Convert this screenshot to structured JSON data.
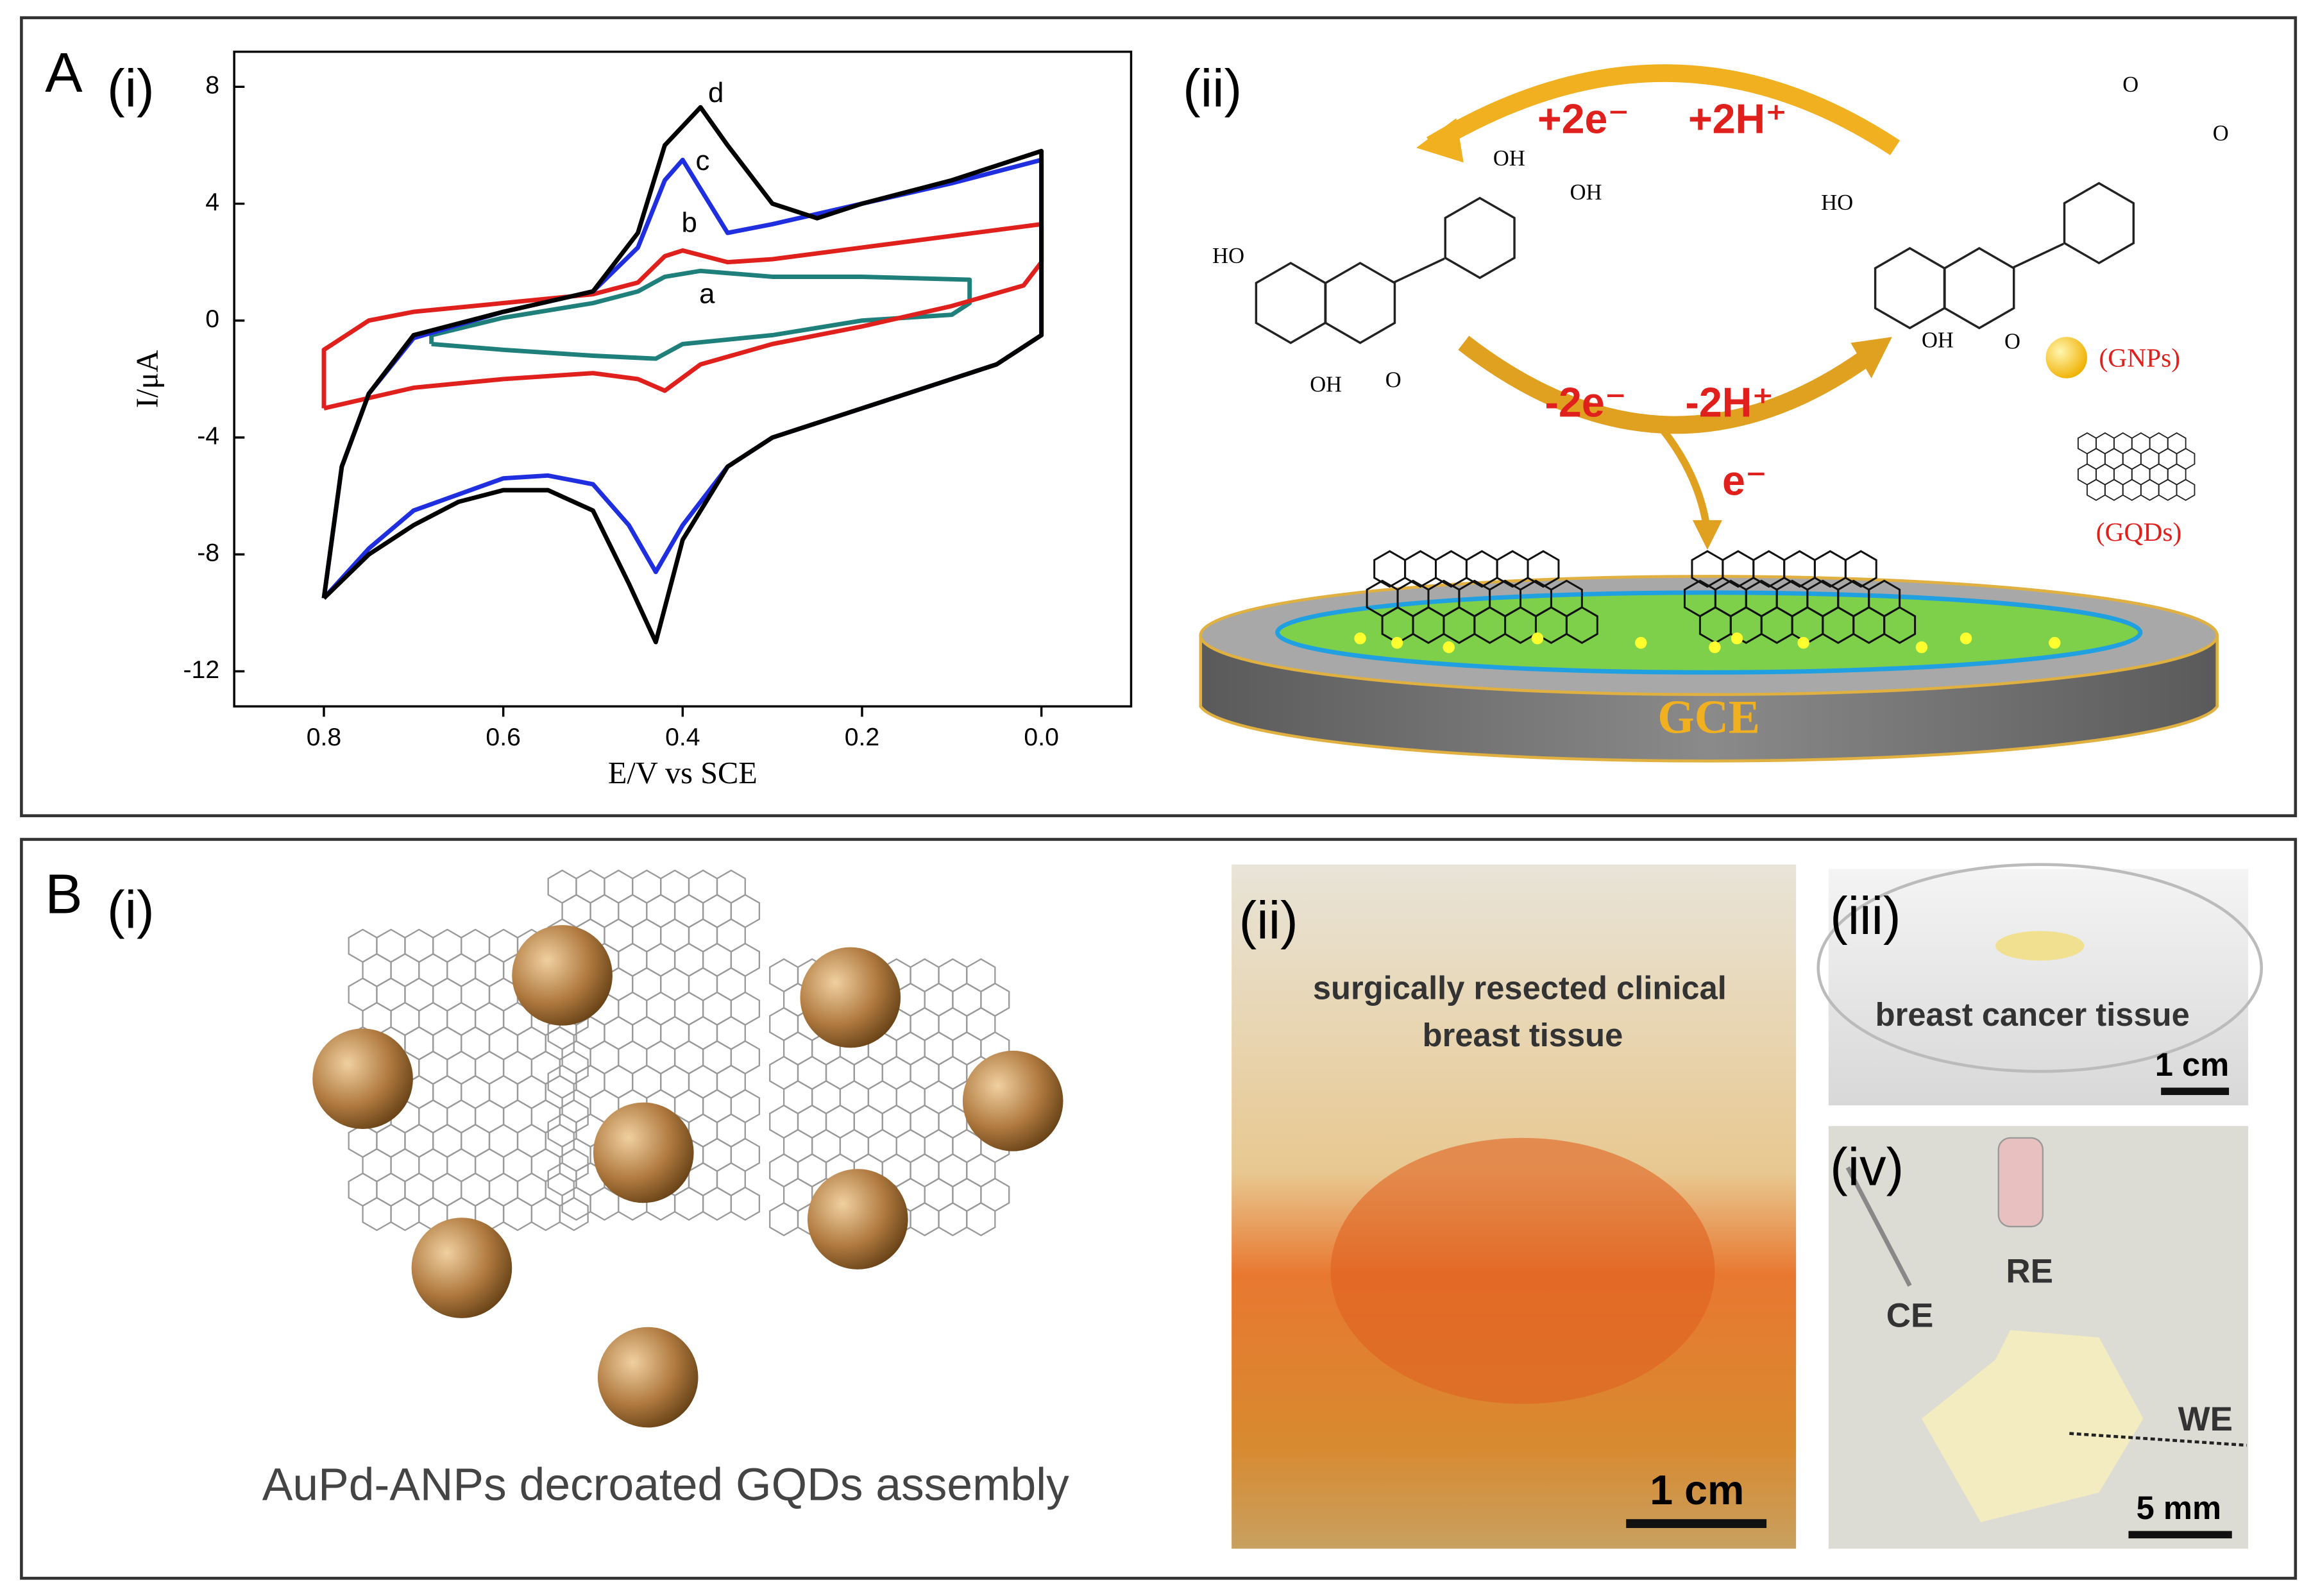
{
  "chart_data": {
    "type": "line",
    "xlabel": "E/V vs SCE",
    "ylabel": "I/μA",
    "xlim": [
      0.9,
      -0.1
    ],
    "ylim": [
      -13.2,
      9.2
    ],
    "xticks": [
      0.8,
      0.6,
      0.4,
      0.2,
      {
        "value": 0,
        "label": "0.0"
      }
    ],
    "yticks": [
      8,
      4,
      0,
      -4,
      -8,
      -12
    ],
    "series": [
      {
        "name": "a",
        "color": "#1f7f7a",
        "x": [
          0.68,
          0.68,
          0.6,
          0.5,
          0.45,
          0.42,
          0.38,
          0.3,
          0.2,
          0.08,
          0.08,
          0.1,
          0.2,
          0.3,
          0.4,
          0.43,
          0.5,
          0.6,
          0.68
        ],
        "values": [
          -0.8,
          -0.5,
          0.1,
          0.6,
          1.0,
          1.5,
          1.7,
          1.5,
          1.5,
          1.4,
          0.6,
          0.2,
          0.0,
          -0.5,
          -0.8,
          -1.3,
          -1.2,
          -1.0,
          -0.8
        ]
      },
      {
        "name": "b",
        "color": "#e0201c",
        "x": [
          0.8,
          0.8,
          0.75,
          0.7,
          0.6,
          0.5,
          0.45,
          0.42,
          0.4,
          0.35,
          0.3,
          0.2,
          0.1,
          0.0,
          0.0,
          0.02,
          0.1,
          0.2,
          0.3,
          0.38,
          0.42,
          0.45,
          0.5,
          0.6,
          0.7,
          0.8
        ],
        "values": [
          -3.0,
          -1.0,
          0.0,
          0.3,
          0.6,
          0.9,
          1.3,
          2.2,
          2.4,
          2.0,
          2.1,
          2.5,
          2.9,
          3.3,
          2.0,
          1.2,
          0.5,
          -0.2,
          -0.8,
          -1.5,
          -2.4,
          -2.0,
          -1.8,
          -2.0,
          -2.3,
          -3.0
        ]
      },
      {
        "name": "c",
        "color": "#1f2fe0",
        "x": [
          0.8,
          0.78,
          0.75,
          0.7,
          0.6,
          0.5,
          0.45,
          0.42,
          0.4,
          0.37,
          0.35,
          0.3,
          0.2,
          0.1,
          0.0,
          0.0,
          0.0,
          0.05,
          0.1,
          0.2,
          0.3,
          0.35,
          0.4,
          0.43,
          0.46,
          0.5,
          0.55,
          0.6,
          0.7,
          0.75,
          0.8
        ],
        "values": [
          -9.5,
          -5.0,
          -2.5,
          -0.6,
          0.3,
          1.0,
          2.5,
          4.8,
          5.5,
          4.0,
          3.0,
          3.3,
          4.0,
          4.7,
          5.5,
          0.8,
          -0.5,
          -1.5,
          -2.0,
          -3.0,
          -4.0,
          -5.0,
          -7.0,
          -8.6,
          -7.0,
          -5.6,
          -5.3,
          -5.4,
          -6.5,
          -7.8,
          -9.5
        ]
      },
      {
        "name": "d",
        "color": "#000000",
        "x": [
          0.8,
          0.78,
          0.75,
          0.7,
          0.6,
          0.5,
          0.45,
          0.42,
          0.38,
          0.35,
          0.3,
          0.25,
          0.2,
          0.1,
          0.0,
          0.0,
          0.0,
          0.05,
          0.1,
          0.2,
          0.3,
          0.35,
          0.4,
          0.43,
          0.46,
          0.5,
          0.55,
          0.6,
          0.65,
          0.7,
          0.75,
          0.8
        ],
        "values": [
          -9.5,
          -5.0,
          -2.5,
          -0.5,
          0.3,
          1.0,
          3.0,
          6.0,
          7.3,
          6.0,
          4.0,
          3.5,
          4.0,
          4.8,
          5.8,
          0.8,
          -0.5,
          -1.5,
          -2.0,
          -3.0,
          -4.0,
          -5.0,
          -7.5,
          -11.0,
          -9.0,
          -6.5,
          -5.8,
          -5.8,
          -6.2,
          -7.0,
          -8.0,
          -9.5
        ]
      }
    ]
  },
  "figure": {
    "panel_a": {
      "letter": "A",
      "sub_i": "(i)",
      "sub_ii": "(ii)",
      "top_electrons": "+2e⁻",
      "top_protons": "+2H⁺",
      "bottom_electrons": "-2e⁻",
      "bottom_protons": "-2H⁺",
      "electron": "e⁻",
      "gnps": "(GNPs)",
      "gqds": "(GQDs)",
      "electrode": "GCE",
      "left_molecule": [
        "OH",
        "OH",
        "HO",
        "OH",
        "O"
      ],
      "right_molecule": [
        "O",
        "O",
        "HO",
        "OH",
        "O"
      ]
    },
    "panel_b": {
      "letter": "B",
      "sub_i": "(i)",
      "sub_ii": "(ii)",
      "sub_iii": "(iii)",
      "sub_iv": "(iv)",
      "assembly_caption": "AuPd-ANPs decroated GQDs assembly",
      "tissue_caption": [
        "surgically resected clinical",
        "breast tissue"
      ],
      "scale_ii": "1 cm",
      "cancer_caption": "breast cancer tissue",
      "scale_iii": "1 cm",
      "electrodes": [
        "CE",
        "RE",
        "WE"
      ],
      "scale_iv": "5 mm"
    }
  }
}
